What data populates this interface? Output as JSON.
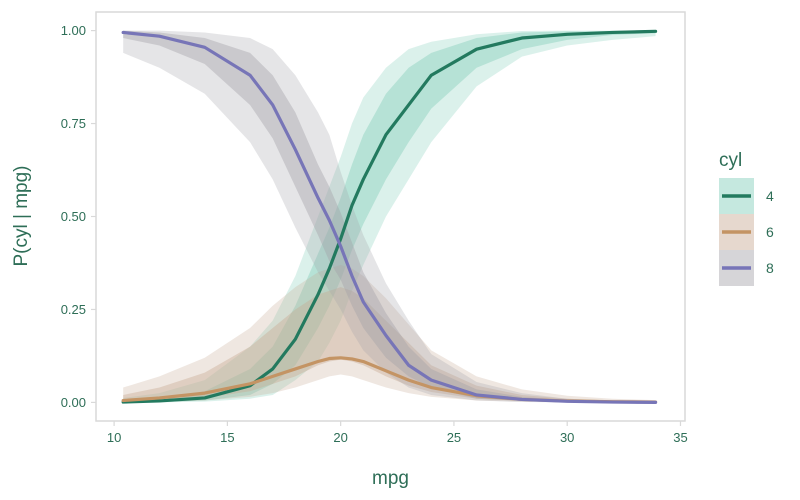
{
  "chart_data": {
    "type": "line",
    "title": "",
    "xlabel": "mpg",
    "ylabel": "P(cyl | mpg)",
    "xlim": [
      9.2,
      35.2
    ],
    "ylim": [
      -0.05,
      1.05
    ],
    "x_ticks": [
      10,
      15,
      20,
      25,
      30,
      35
    ],
    "x_tick_labels": [
      "10",
      "15",
      "20",
      "25",
      "30",
      "35"
    ],
    "y_ticks": [
      0,
      0.25,
      0.5,
      0.75,
      1
    ],
    "y_tick_labels": [
      "0.00",
      "0.25",
      "0.50",
      "0.75",
      "1.00"
    ],
    "grid": false,
    "legend": {
      "title": "cyl",
      "position": "right"
    },
    "x": [
      10.4,
      12,
      14,
      16,
      17,
      18,
      19,
      19.5,
      20,
      20.5,
      21,
      22,
      23,
      24,
      26,
      28,
      30,
      32,
      33.9
    ],
    "series": [
      {
        "name": "4",
        "color": "#237a5f",
        "band_color": "#7fcdb7",
        "values": [
          0.001,
          0.004,
          0.012,
          0.045,
          0.09,
          0.17,
          0.29,
          0.36,
          0.44,
          0.53,
          0.6,
          0.72,
          0.8,
          0.88,
          0.95,
          0.98,
          0.99,
          0.995,
          0.998
        ],
        "inner_lower": [
          0.0,
          0.001,
          0.005,
          0.02,
          0.05,
          0.1,
          0.2,
          0.26,
          0.33,
          0.41,
          0.48,
          0.6,
          0.7,
          0.79,
          0.9,
          0.95,
          0.975,
          0.988,
          0.993
        ],
        "inner_upper": [
          0.004,
          0.01,
          0.03,
          0.09,
          0.15,
          0.26,
          0.4,
          0.47,
          0.55,
          0.64,
          0.72,
          0.83,
          0.9,
          0.94,
          0.98,
          0.995,
          0.998,
          0.999,
          1.0
        ],
        "outer_lower": [
          0.0,
          0.0,
          0.002,
          0.01,
          0.02,
          0.06,
          0.11,
          0.16,
          0.22,
          0.3,
          0.37,
          0.5,
          0.6,
          0.7,
          0.85,
          0.93,
          0.96,
          0.975,
          0.985
        ],
        "outer_upper": [
          0.012,
          0.025,
          0.06,
          0.15,
          0.22,
          0.34,
          0.5,
          0.58,
          0.66,
          0.75,
          0.82,
          0.9,
          0.95,
          0.97,
          0.99,
          0.999,
          1.0,
          1.0,
          1.0
        ]
      },
      {
        "name": "6",
        "color": "#c49464",
        "band_color": "#c7a992",
        "values": [
          0.005,
          0.012,
          0.025,
          0.05,
          0.07,
          0.09,
          0.11,
          0.118,
          0.12,
          0.117,
          0.11,
          0.085,
          0.06,
          0.04,
          0.018,
          0.008,
          0.004,
          0.002,
          0.001
        ],
        "inner_lower": [
          0.001,
          0.005,
          0.012,
          0.03,
          0.05,
          0.07,
          0.1,
          0.11,
          0.115,
          0.11,
          0.1,
          0.07,
          0.045,
          0.028,
          0.01,
          0.004,
          0.002,
          0.001,
          0.0
        ],
        "inner_upper": [
          0.02,
          0.04,
          0.08,
          0.15,
          0.2,
          0.25,
          0.29,
          0.3,
          0.31,
          0.3,
          0.28,
          0.22,
          0.16,
          0.1,
          0.045,
          0.02,
          0.01,
          0.005,
          0.003
        ],
        "outer_lower": [
          0.0,
          0.001,
          0.005,
          0.015,
          0.025,
          0.04,
          0.06,
          0.07,
          0.075,
          0.07,
          0.06,
          0.04,
          0.025,
          0.015,
          0.005,
          0.002,
          0.0,
          0.0,
          0.0
        ],
        "outer_upper": [
          0.04,
          0.07,
          0.12,
          0.2,
          0.26,
          0.31,
          0.35,
          0.36,
          0.37,
          0.36,
          0.34,
          0.28,
          0.21,
          0.14,
          0.07,
          0.035,
          0.018,
          0.01,
          0.006
        ]
      },
      {
        "name": "8",
        "color": "#7775b7",
        "band_color": "#a3a1a8",
        "values": [
          0.995,
          0.985,
          0.955,
          0.88,
          0.8,
          0.68,
          0.55,
          0.49,
          0.42,
          0.34,
          0.27,
          0.18,
          0.1,
          0.06,
          0.02,
          0.008,
          0.003,
          0.001,
          0.0
        ],
        "inner_lower": [
          0.98,
          0.96,
          0.91,
          0.8,
          0.71,
          0.58,
          0.45,
          0.38,
          0.33,
          0.26,
          0.2,
          0.12,
          0.07,
          0.04,
          0.01,
          0.004,
          0.001,
          0.0,
          0.0
        ],
        "inner_upper": [
          1.0,
          0.995,
          0.98,
          0.94,
          0.88,
          0.78,
          0.64,
          0.58,
          0.51,
          0.43,
          0.35,
          0.24,
          0.15,
          0.09,
          0.035,
          0.015,
          0.006,
          0.003,
          0.001
        ],
        "outer_lower": [
          0.94,
          0.9,
          0.83,
          0.7,
          0.6,
          0.47,
          0.35,
          0.3,
          0.25,
          0.19,
          0.14,
          0.08,
          0.04,
          0.02,
          0.005,
          0.001,
          0.0,
          0.0,
          0.0
        ],
        "outer_upper": [
          1.0,
          1.0,
          0.995,
          0.98,
          0.95,
          0.88,
          0.78,
          0.72,
          0.62,
          0.53,
          0.45,
          0.32,
          0.22,
          0.13,
          0.055,
          0.025,
          0.01,
          0.005,
          0.002
        ]
      }
    ],
    "colors": {
      "text": "#2e6e57",
      "panel_border": "#d9d9d9"
    }
  }
}
